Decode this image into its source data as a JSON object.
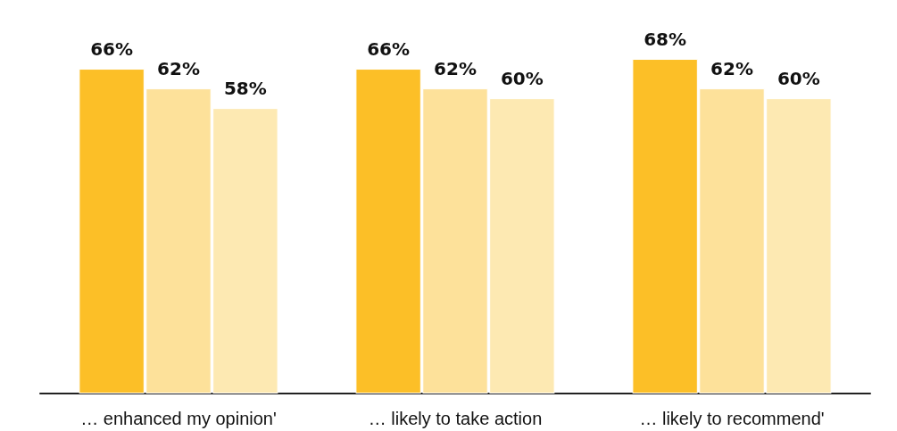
{
  "chart_data": {
    "type": "bar",
    "categories": [
      "… enhanced my opinion'",
      "… likely to take action",
      "… likely to recommend'"
    ],
    "series": [
      {
        "color": "#fcbf27",
        "values": [
          66,
          66,
          68
        ],
        "value_labels": [
          "66%",
          "66%",
          "68%"
        ]
      },
      {
        "color": "#fde19a",
        "values": [
          62,
          62,
          62
        ],
        "value_labels": [
          "62%",
          "62%",
          "62%"
        ]
      },
      {
        "color": "#fde9b2",
        "values": [
          58,
          60,
          60
        ],
        "value_labels": [
          "58%",
          "60%",
          "60%"
        ]
      }
    ]
  }
}
